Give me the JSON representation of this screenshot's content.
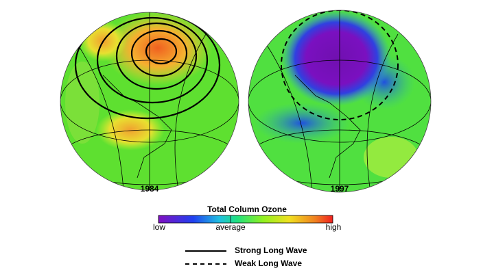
{
  "maps": [
    {
      "label": "1984"
    },
    {
      "label": "1997"
    }
  ],
  "colorbar": {
    "title": "Total Column Ozone",
    "low": "low",
    "average": "average",
    "high": "high"
  },
  "legend": [
    {
      "label": "Strong Long Wave"
    },
    {
      "label": "Weak Long Wave"
    }
  ]
}
